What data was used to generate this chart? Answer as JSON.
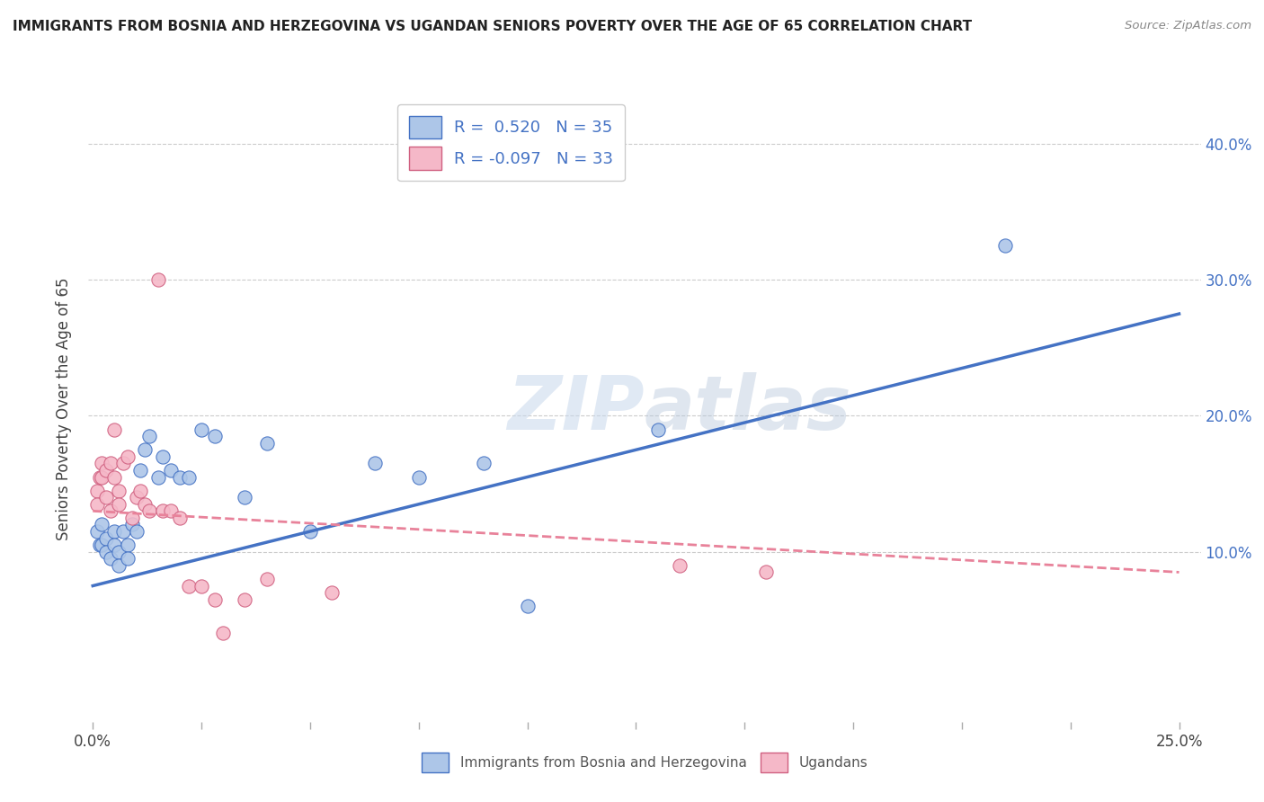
{
  "title": "IMMIGRANTS FROM BOSNIA AND HERZEGOVINA VS UGANDAN SENIORS POVERTY OVER THE AGE OF 65 CORRELATION CHART",
  "source": "Source: ZipAtlas.com",
  "ylabel": "Seniors Poverty Over the Age of 65",
  "watermark": "ZIPatlas",
  "blue_R": "0.520",
  "blue_N": "35",
  "pink_R": "-0.097",
  "pink_N": "33",
  "blue_color": "#adc6e8",
  "pink_color": "#f5b8c8",
  "blue_line_color": "#4472c4",
  "pink_line_color": "#e8829a",
  "legend_blue_label": "Immigrants from Bosnia and Herzegovina",
  "legend_pink_label": "Ugandans",
  "blue_scatter_x": [
    0.001,
    0.0015,
    0.002,
    0.002,
    0.003,
    0.003,
    0.004,
    0.005,
    0.005,
    0.006,
    0.006,
    0.007,
    0.008,
    0.008,
    0.009,
    0.01,
    0.011,
    0.012,
    0.013,
    0.015,
    0.016,
    0.018,
    0.02,
    0.022,
    0.025,
    0.028,
    0.035,
    0.04,
    0.05,
    0.065,
    0.075,
    0.09,
    0.1,
    0.13,
    0.21
  ],
  "blue_scatter_y": [
    0.115,
    0.105,
    0.12,
    0.105,
    0.11,
    0.1,
    0.095,
    0.115,
    0.105,
    0.1,
    0.09,
    0.115,
    0.105,
    0.095,
    0.12,
    0.115,
    0.16,
    0.175,
    0.185,
    0.155,
    0.17,
    0.16,
    0.155,
    0.155,
    0.19,
    0.185,
    0.14,
    0.18,
    0.115,
    0.165,
    0.155,
    0.165,
    0.06,
    0.19,
    0.325
  ],
  "pink_scatter_x": [
    0.001,
    0.001,
    0.0015,
    0.002,
    0.002,
    0.003,
    0.003,
    0.004,
    0.004,
    0.005,
    0.005,
    0.006,
    0.006,
    0.007,
    0.008,
    0.009,
    0.01,
    0.011,
    0.012,
    0.013,
    0.015,
    0.016,
    0.018,
    0.02,
    0.022,
    0.025,
    0.028,
    0.03,
    0.035,
    0.04,
    0.055,
    0.135,
    0.155
  ],
  "pink_scatter_y": [
    0.145,
    0.135,
    0.155,
    0.165,
    0.155,
    0.16,
    0.14,
    0.165,
    0.13,
    0.19,
    0.155,
    0.145,
    0.135,
    0.165,
    0.17,
    0.125,
    0.14,
    0.145,
    0.135,
    0.13,
    0.3,
    0.13,
    0.13,
    0.125,
    0.075,
    0.075,
    0.065,
    0.04,
    0.065,
    0.08,
    0.07,
    0.09,
    0.085
  ],
  "blue_line_x": [
    0.0,
    0.25
  ],
  "blue_line_y": [
    0.075,
    0.275
  ],
  "pink_line_x": [
    0.0,
    0.25
  ],
  "pink_line_y": [
    0.13,
    0.085
  ],
  "xlim": [
    -0.001,
    0.255
  ],
  "ylim": [
    -0.025,
    0.435
  ],
  "x_tick_positions": [
    0.0,
    0.025,
    0.05,
    0.075,
    0.1,
    0.125,
    0.15,
    0.175,
    0.2,
    0.225,
    0.25
  ],
  "y_ticks": [
    0.1,
    0.2,
    0.3,
    0.4
  ]
}
